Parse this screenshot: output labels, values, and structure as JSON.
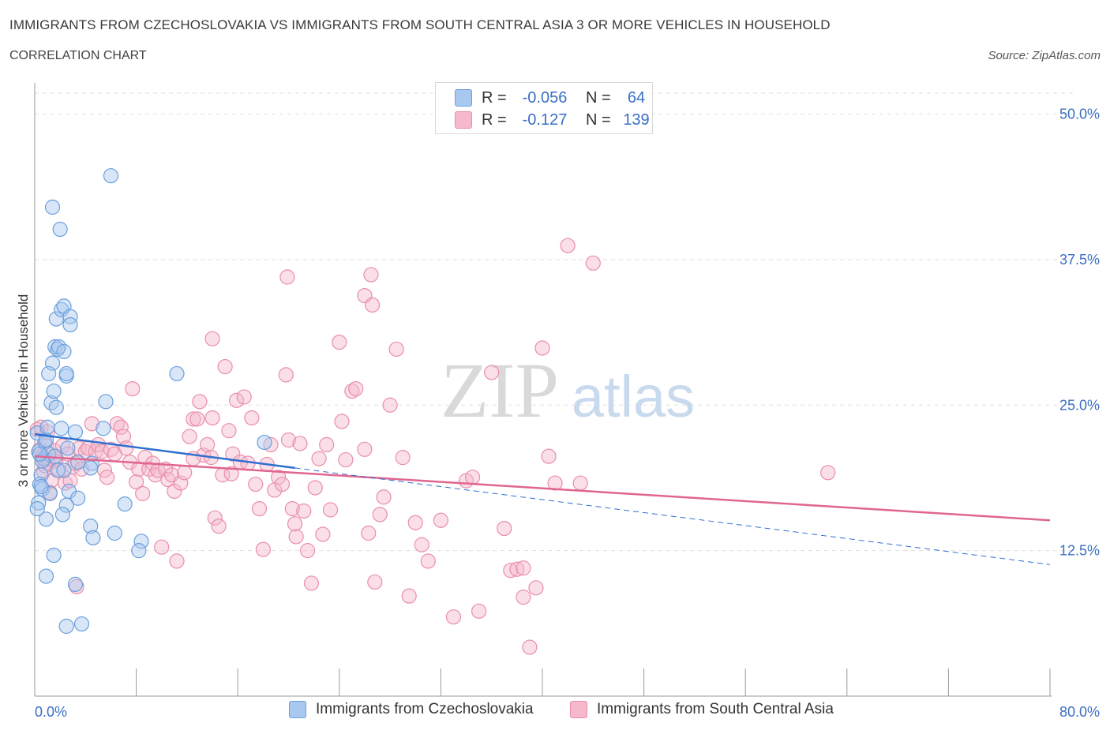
{
  "title": "IMMIGRANTS FROM CZECHOSLOVAKIA VS IMMIGRANTS FROM SOUTH CENTRAL ASIA 3 OR MORE VEHICLES IN HOUSEHOLD",
  "subtitle": "CORRELATION CHART",
  "source": "Source: ZipAtlas.com",
  "watermark": {
    "zip": "ZIP",
    "atlas": "atlas"
  },
  "legend": {
    "rows": [
      {
        "r_label": "R =",
        "r_value": "-0.056",
        "n_label": "N =",
        "n_value": "64"
      },
      {
        "r_label": "R =",
        "r_value": "-0.127",
        "n_label": "N =",
        "n_value": "139"
      }
    ]
  },
  "colors": {
    "blue_fill": "#a9c8f0",
    "blue_stroke": "#6a9fdc",
    "blue_line": "#2f6fd1",
    "pink_fill": "#f5b9cb",
    "pink_stroke": "#ea8eaa",
    "pink_line": "#e0668f",
    "axis_text": "#3a6fc4",
    "grid": "#e0e0e0"
  },
  "chart_data": {
    "type": "scatter",
    "title": "IMMIGRANTS FROM CZECHOSLOVAKIA VS IMMIGRANTS FROM SOUTH CENTRAL ASIA 3 OR MORE VEHICLES IN HOUSEHOLD",
    "xlabel": "",
    "ylabel": "3 or more Vehicles in Household",
    "xlim": [
      0,
      80
    ],
    "ylim": [
      0,
      52
    ],
    "x_tick_labels": [
      "0.0%",
      "80.0%"
    ],
    "y_ticks": [
      12.5,
      25.0,
      37.5,
      50.0
    ],
    "y_tick_labels": [
      "12.5%",
      "25.0%",
      "37.5%",
      "50.0%"
    ],
    "grid": true,
    "legend_position": "top-center",
    "series": [
      {
        "name": "Immigrants from Czechoslovakia",
        "R": -0.056,
        "N": 64,
        "trend": {
          "x": [
            0,
            20.5
          ],
          "y": [
            22.5,
            19.6
          ]
        },
        "trend_extension": {
          "x": [
            20.5,
            80
          ],
          "y": [
            19.6,
            11.3
          ]
        },
        "points": [
          [
            0.2,
            22.6
          ],
          [
            0.3,
            21.0
          ],
          [
            0.5,
            19.0
          ],
          [
            0.4,
            18.2
          ],
          [
            0.6,
            17.8
          ],
          [
            0.8,
            21.8
          ],
          [
            0.9,
            22.0
          ],
          [
            0.7,
            20.4
          ],
          [
            1.0,
            23.1
          ],
          [
            1.1,
            20.8
          ],
          [
            0.3,
            16.6
          ],
          [
            0.9,
            15.2
          ],
          [
            1.2,
            17.4
          ],
          [
            1.6,
            20.6
          ],
          [
            1.8,
            19.4
          ],
          [
            0.5,
            18.0
          ],
          [
            1.3,
            25.2
          ],
          [
            1.5,
            26.2
          ],
          [
            1.7,
            24.8
          ],
          [
            2.1,
            23.0
          ],
          [
            2.3,
            19.4
          ],
          [
            1.4,
            28.6
          ],
          [
            1.6,
            30.0
          ],
          [
            1.8,
            29.8
          ],
          [
            1.1,
            27.7
          ],
          [
            2.5,
            27.5
          ],
          [
            2.5,
            27.7
          ],
          [
            2.6,
            21.3
          ],
          [
            2.7,
            17.6
          ],
          [
            1.7,
            32.4
          ],
          [
            2.1,
            33.2
          ],
          [
            2.3,
            33.5
          ],
          [
            2.8,
            32.6
          ],
          [
            2.8,
            31.9
          ],
          [
            3.2,
            22.7
          ],
          [
            3.4,
            17.0
          ],
          [
            2.5,
            16.4
          ],
          [
            1.4,
            42.0
          ],
          [
            2.0,
            40.1
          ],
          [
            6.0,
            44.7
          ],
          [
            1.9,
            30.0
          ],
          [
            2.3,
            29.6
          ],
          [
            4.5,
            20.0
          ],
          [
            5.4,
            23.0
          ],
          [
            5.6,
            25.3
          ],
          [
            4.4,
            19.6
          ],
          [
            3.4,
            20.1
          ],
          [
            2.2,
            15.6
          ],
          [
            4.4,
            14.6
          ],
          [
            4.6,
            13.6
          ],
          [
            6.3,
            14.0
          ],
          [
            7.1,
            16.5
          ],
          [
            8.4,
            13.3
          ],
          [
            8.2,
            12.5
          ],
          [
            11.2,
            27.7
          ],
          [
            18.1,
            21.8
          ],
          [
            1.5,
            12.1
          ],
          [
            0.9,
            10.3
          ],
          [
            3.2,
            9.6
          ],
          [
            2.5,
            6.0
          ],
          [
            3.7,
            6.2
          ],
          [
            0.2,
            16.1
          ],
          [
            0.6,
            20.2
          ],
          [
            0.4,
            20.8
          ]
        ]
      },
      {
        "name": "Immigrants from South Central Asia",
        "R": -0.127,
        "N": 139,
        "trend": {
          "x": [
            0,
            80
          ],
          "y": [
            20.6,
            15.1
          ]
        },
        "points": [
          [
            0.2,
            22.9
          ],
          [
            0.4,
            21.2
          ],
          [
            0.5,
            23.1
          ],
          [
            0.6,
            20.6
          ],
          [
            0.7,
            19.3
          ],
          [
            0.8,
            19.8
          ],
          [
            0.9,
            21.5
          ],
          [
            1.0,
            22.7
          ],
          [
            1.1,
            20.0
          ],
          [
            1.2,
            17.5
          ],
          [
            1.3,
            18.5
          ],
          [
            1.5,
            21.1
          ],
          [
            1.6,
            20.2
          ],
          [
            1.7,
            20.4
          ],
          [
            1.9,
            19.4
          ],
          [
            2.2,
            21.5
          ],
          [
            2.4,
            18.3
          ],
          [
            2.6,
            20.8
          ],
          [
            2.8,
            18.5
          ],
          [
            3.0,
            19.7
          ],
          [
            3.2,
            20.0
          ],
          [
            3.3,
            9.4
          ],
          [
            3.5,
            21.3
          ],
          [
            3.7,
            19.5
          ],
          [
            4.0,
            21.0
          ],
          [
            4.2,
            21.3
          ],
          [
            4.5,
            23.4
          ],
          [
            4.8,
            21.0
          ],
          [
            5.0,
            21.6
          ],
          [
            5.3,
            21.0
          ],
          [
            5.5,
            19.4
          ],
          [
            5.7,
            18.8
          ],
          [
            6.0,
            21.2
          ],
          [
            6.3,
            20.8
          ],
          [
            6.5,
            23.4
          ],
          [
            6.8,
            23.1
          ],
          [
            7.0,
            22.3
          ],
          [
            7.2,
            21.3
          ],
          [
            7.5,
            20.1
          ],
          [
            7.7,
            26.4
          ],
          [
            8.0,
            18.4
          ],
          [
            8.2,
            19.5
          ],
          [
            8.5,
            17.4
          ],
          [
            8.7,
            20.5
          ],
          [
            9.0,
            19.5
          ],
          [
            9.3,
            20.0
          ],
          [
            9.5,
            19.0
          ],
          [
            9.7,
            19.4
          ],
          [
            10.0,
            12.8
          ],
          [
            10.3,
            19.5
          ],
          [
            10.5,
            18.6
          ],
          [
            10.8,
            19.0
          ],
          [
            11.0,
            17.6
          ],
          [
            11.2,
            11.6
          ],
          [
            11.5,
            18.3
          ],
          [
            11.8,
            19.2
          ],
          [
            12.2,
            22.3
          ],
          [
            12.5,
            23.8
          ],
          [
            12.8,
            23.8
          ],
          [
            13.0,
            25.3
          ],
          [
            13.3,
            20.7
          ],
          [
            13.6,
            21.6
          ],
          [
            13.9,
            20.5
          ],
          [
            14.0,
            30.7
          ],
          [
            14.2,
            15.3
          ],
          [
            14.5,
            14.6
          ],
          [
            14.8,
            19.0
          ],
          [
            15.0,
            28.3
          ],
          [
            15.3,
            22.8
          ],
          [
            15.6,
            20.8
          ],
          [
            15.9,
            25.4
          ],
          [
            16.2,
            20.1
          ],
          [
            16.5,
            25.7
          ],
          [
            16.8,
            20.0
          ],
          [
            17.1,
            23.9
          ],
          [
            17.4,
            18.2
          ],
          [
            17.7,
            16.1
          ],
          [
            18.0,
            12.6
          ],
          [
            18.3,
            19.9
          ],
          [
            18.6,
            21.6
          ],
          [
            18.9,
            17.7
          ],
          [
            19.2,
            18.8
          ],
          [
            19.5,
            18.2
          ],
          [
            19.8,
            27.6
          ],
          [
            20.0,
            22.0
          ],
          [
            20.3,
            16.1
          ],
          [
            20.6,
            13.7
          ],
          [
            20.9,
            21.7
          ],
          [
            21.2,
            15.9
          ],
          [
            21.5,
            12.5
          ],
          [
            21.8,
            9.7
          ],
          [
            22.1,
            17.9
          ],
          [
            22.4,
            20.4
          ],
          [
            22.7,
            13.9
          ],
          [
            23.0,
            21.6
          ],
          [
            23.3,
            16.0
          ],
          [
            24.2,
            23.6
          ],
          [
            24.5,
            20.3
          ],
          [
            25.0,
            26.2
          ],
          [
            25.3,
            26.4
          ],
          [
            26.0,
            21.2
          ],
          [
            26.3,
            14.0
          ],
          [
            26.8,
            9.8
          ],
          [
            27.2,
            15.6
          ],
          [
            27.5,
            17.1
          ],
          [
            28.0,
            25.0
          ],
          [
            28.5,
            29.8
          ],
          [
            29.0,
            20.5
          ],
          [
            29.5,
            8.6
          ],
          [
            30.0,
            14.9
          ],
          [
            30.5,
            13.0
          ],
          [
            31.0,
            11.6
          ],
          [
            32.0,
            15.1
          ],
          [
            33.0,
            6.8
          ],
          [
            34.0,
            18.5
          ],
          [
            34.5,
            18.8
          ],
          [
            35.0,
            7.3
          ],
          [
            36.0,
            27.8
          ],
          [
            37.0,
            14.4
          ],
          [
            37.5,
            10.8
          ],
          [
            38.0,
            10.9
          ],
          [
            38.5,
            8.5
          ],
          [
            39.0,
            4.2
          ],
          [
            39.5,
            9.3
          ],
          [
            40.0,
            29.9
          ],
          [
            40.5,
            20.6
          ],
          [
            41.0,
            18.3
          ],
          [
            42.0,
            38.7
          ],
          [
            43.0,
            18.3
          ],
          [
            44.0,
            37.2
          ],
          [
            19.9,
            36.0
          ],
          [
            24.0,
            30.4
          ],
          [
            26.0,
            34.4
          ],
          [
            26.6,
            33.6
          ],
          [
            20.5,
            14.8
          ],
          [
            26.5,
            36.2
          ],
          [
            38.5,
            11.0
          ],
          [
            62.5,
            19.2
          ],
          [
            14.0,
            23.9
          ],
          [
            15.5,
            19.1
          ],
          [
            12.5,
            20.4
          ]
        ]
      }
    ]
  },
  "bottom_legend": [
    "Immigrants from Czechoslovakia",
    "Immigrants from South Central Asia"
  ],
  "y_axis_label": "3 or more Vehicles in Household"
}
